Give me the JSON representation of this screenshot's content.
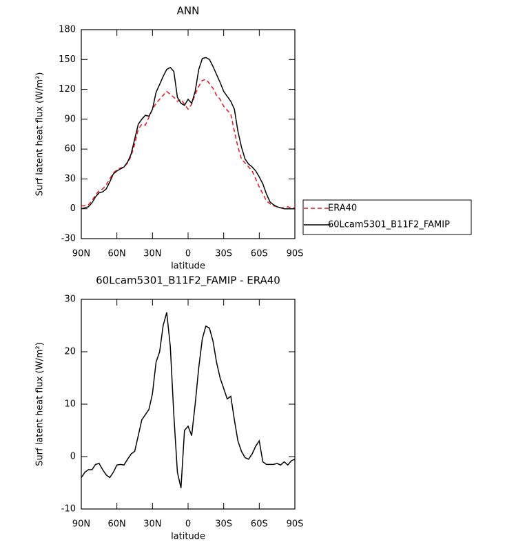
{
  "chart_data": [
    {
      "type": "line",
      "title": "ANN",
      "xlabel": "latitude",
      "ylabel": "Surf latent heat flux (W/m²)",
      "x": [
        90,
        87,
        84,
        81,
        78,
        75,
        72,
        69,
        66,
        63,
        60,
        57,
        54,
        51,
        48,
        45,
        42,
        39,
        36,
        33,
        30,
        27,
        24,
        21,
        18,
        15,
        12,
        9,
        6,
        3,
        0,
        -3,
        -6,
        -9,
        -12,
        -15,
        -18,
        -21,
        -24,
        -27,
        -30,
        -33,
        -36,
        -39,
        -42,
        -45,
        -48,
        -51,
        -54,
        -57,
        -60,
        -63,
        -66,
        -69,
        -72,
        -75,
        -78,
        -81,
        -84,
        -87,
        -90
      ],
      "series": [
        {
          "name": "ERA40",
          "color": "#e8141e",
          "linestyle": "dashed",
          "values": [
            3,
            3,
            4,
            8,
            14,
            18,
            20,
            24,
            30,
            36,
            39,
            41,
            42,
            46,
            53,
            65,
            80,
            85,
            84,
            92,
            100,
            106,
            110,
            114,
            118,
            115,
            112,
            108,
            110,
            105,
            100,
            105,
            115,
            123,
            129,
            130,
            126,
            121,
            114,
            110,
            103,
            99,
            95,
            78,
            62,
            50,
            46,
            42,
            38,
            30,
            22,
            15,
            8,
            5,
            3,
            2,
            1,
            1,
            2,
            1,
            1
          ]
        },
        {
          "name": "60Lcam5301_B11F2_FAMIP",
          "color": "#000000",
          "linestyle": "solid",
          "values": [
            0,
            1,
            2,
            6,
            12,
            16,
            17,
            20,
            27,
            35,
            38,
            40,
            42,
            47,
            55,
            70,
            85,
            90,
            94,
            93,
            100,
            117,
            125,
            133,
            140,
            142,
            138,
            112,
            106,
            104,
            110,
            106,
            118,
            140,
            151,
            152,
            150,
            143,
            135,
            127,
            118,
            113,
            108,
            100,
            78,
            62,
            50,
            45,
            42,
            38,
            32,
            25,
            15,
            7,
            4,
            2,
            1,
            0,
            0,
            0,
            0
          ]
        }
      ],
      "xlim": [
        90,
        -90
      ],
      "xticks": [
        {
          "value": 90,
          "label": "90N"
        },
        {
          "value": 60,
          "label": "60N"
        },
        {
          "value": 30,
          "label": "30N"
        },
        0,
        {
          "value": -30,
          "label": "30S"
        },
        {
          "value": -60,
          "label": "60S"
        },
        {
          "value": -90,
          "label": "90S"
        }
      ],
      "ylim": [
        -30,
        180
      ],
      "yticks": [
        -30,
        0,
        30,
        60,
        90,
        120,
        150,
        180
      ],
      "legend": "right"
    },
    {
      "type": "line",
      "title": "60Lcam5301_B11F2_FAMIP - ERA40",
      "xlabel": "latitude",
      "ylabel": "Surf latent heat flux (W/m²)",
      "x": [
        90,
        87,
        84,
        81,
        78,
        75,
        72,
        69,
        66,
        63,
        60,
        57,
        54,
        51,
        48,
        45,
        42,
        39,
        36,
        33,
        30,
        27,
        24,
        21,
        18,
        15,
        12,
        9,
        6,
        3,
        0,
        -3,
        -6,
        -9,
        -12,
        -15,
        -18,
        -21,
        -24,
        -27,
        -30,
        -33,
        -36,
        -39,
        -42,
        -45,
        -48,
        -51,
        -54,
        -57,
        -60,
        -63,
        -66,
        -69,
        -72,
        -75,
        -78,
        -81,
        -84,
        -87,
        -90
      ],
      "series": [
        {
          "color": "#000000",
          "linestyle": "solid",
          "values": [
            -4,
            -3,
            -2.5,
            -2.5,
            -1.5,
            -1.3,
            -2.5,
            -3.5,
            -4,
            -3,
            -1.6,
            -1.5,
            -1.6,
            -0.5,
            0.5,
            1,
            4,
            7,
            8,
            9,
            12,
            18,
            20,
            25,
            27.5,
            21,
            8,
            -3,
            -6,
            5,
            5.8,
            4,
            10,
            17,
            22.5,
            24.9,
            24.5,
            22,
            18,
            15,
            13,
            11,
            11.5,
            7,
            3,
            1,
            -0.2,
            -0.5,
            0.5,
            2,
            3,
            -1,
            -1.5,
            -1.5,
            -1.5,
            -1.3,
            -1.6,
            -1,
            -1.6,
            -0.8,
            -0.5
          ]
        }
      ],
      "xlim": [
        90,
        -90
      ],
      "xticks": [
        {
          "value": 90,
          "label": "90N"
        },
        {
          "value": 60,
          "label": "60N"
        },
        {
          "value": 30,
          "label": "30N"
        },
        0,
        {
          "value": -30,
          "label": "30S"
        },
        {
          "value": -60,
          "label": "60S"
        },
        {
          "value": -90,
          "label": "90S"
        }
      ],
      "ylim": [
        -10,
        30
      ],
      "yticks": [
        -10,
        0,
        10,
        20,
        30
      ]
    }
  ]
}
